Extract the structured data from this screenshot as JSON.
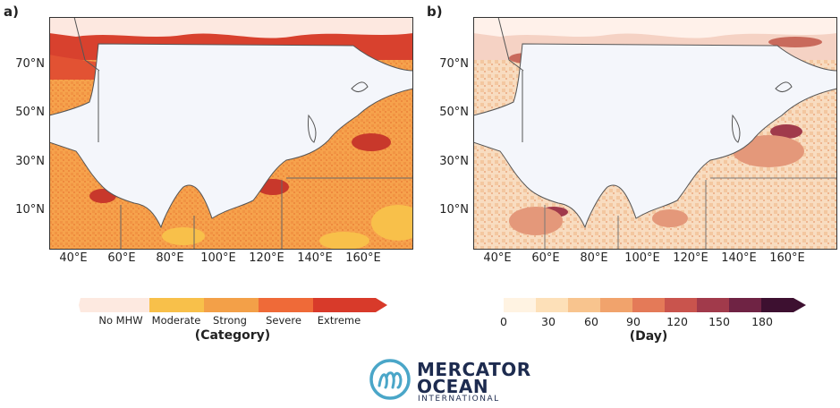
{
  "panel_a": {
    "letter": "a)",
    "lat_ticks": [
      "70°N",
      "50°N",
      "30°N",
      "10°N"
    ],
    "lon_ticks": [
      "40°E",
      "60°E",
      "80°E",
      "100°E",
      "120°E",
      "140°E",
      "160°E"
    ],
    "colorbar": {
      "title": "(Category)",
      "categories": [
        "No MHW",
        "Moderate",
        "Strong",
        "Severe",
        "Extreme"
      ],
      "colors": [
        "#fde9e0",
        "#f8c04a",
        "#f3a048",
        "#ef6a38",
        "#d83a2a"
      ]
    }
  },
  "panel_b": {
    "letter": "b)",
    "lat_ticks": [
      "70°N",
      "50°N",
      "30°N",
      "10°N"
    ],
    "lon_ticks": [
      "40°E",
      "60°E",
      "80°E",
      "100°E",
      "120°E",
      "140°E",
      "160°E"
    ],
    "colorbar": {
      "title": "(Day)",
      "ticks": [
        "0",
        "30",
        "60",
        "90",
        "120",
        "150",
        "180"
      ],
      "colors": [
        "#fff3e2",
        "#fde0b8",
        "#f8c48e",
        "#f1a36c",
        "#e47a58",
        "#c9544d",
        "#a13a4b",
        "#6f2344",
        "#3d1030"
      ]
    }
  },
  "logo": {
    "line1": "MERCATOR",
    "line2": "OCEAN",
    "line3": "INTERNATIONAL",
    "colors": {
      "icon": "#4aa6c8",
      "text": "#1d2b4f"
    }
  }
}
